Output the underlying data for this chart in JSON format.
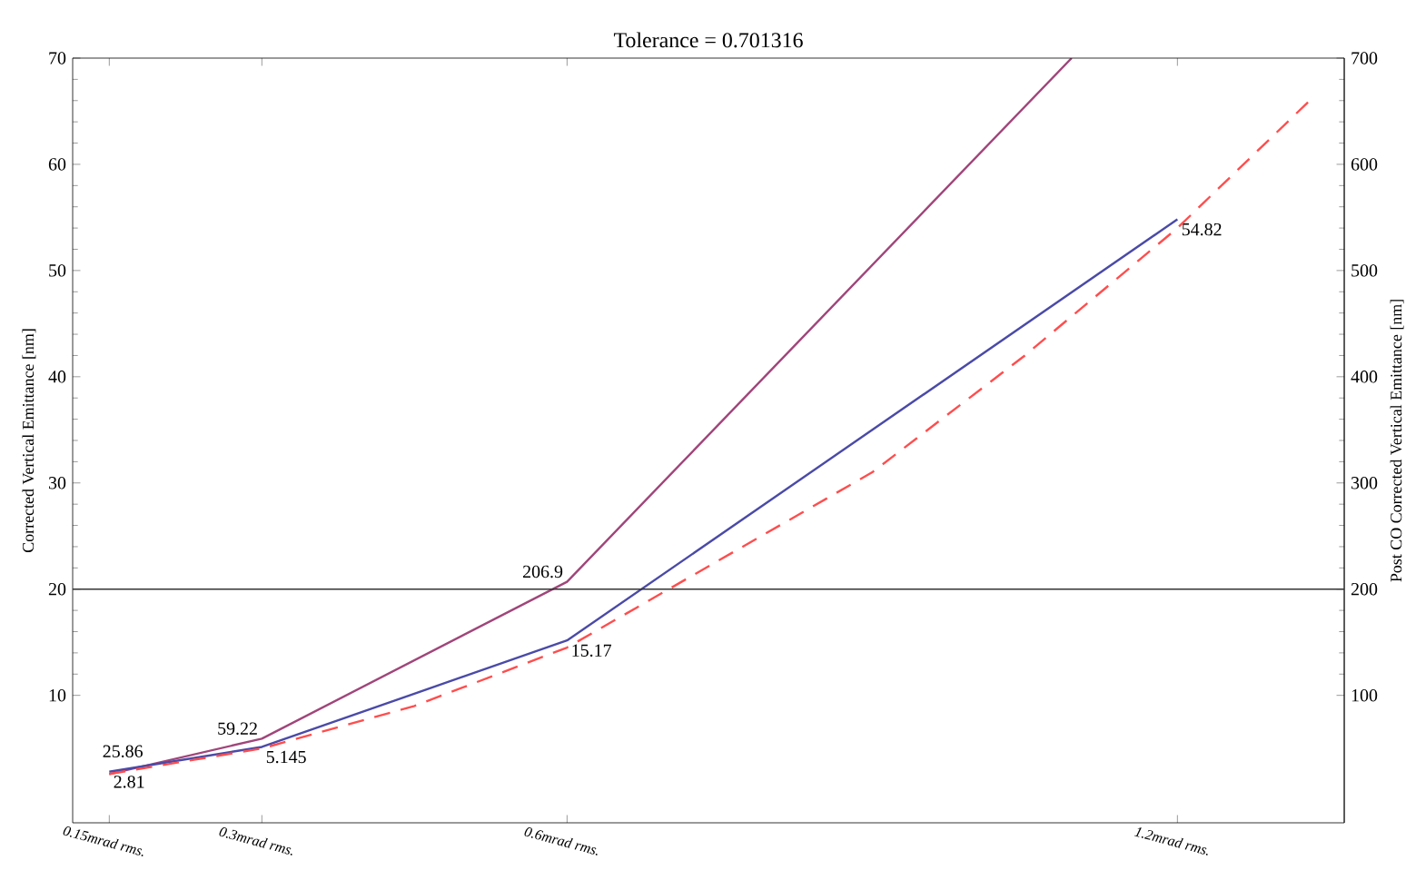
{
  "chart_data": {
    "type": "line",
    "subtitle": "Tolerance = 0.701316",
    "ylabel": "Corrected Vertical Emittance [nm]",
    "y2label": "Post CO Corrected Vertical Emittance [nm]",
    "xlim": [
      0.114,
      1.364
    ],
    "ylim": [
      -2,
      70
    ],
    "y2lim": [
      -20,
      700
    ],
    "xticks": [
      {
        "value": 0.15,
        "label": "0.15mrad rms."
      },
      {
        "value": 0.3,
        "label": "0.3mrad rms."
      },
      {
        "value": 0.6,
        "label": "0.6mrad rms."
      },
      {
        "value": 1.2,
        "label": "1.2mrad rms."
      }
    ],
    "yticks": [
      10,
      20,
      30,
      40,
      50,
      60,
      70
    ],
    "y2ticks": [
      100,
      200,
      300,
      400,
      500,
      600,
      700
    ],
    "series": [
      {
        "color": "#a0457a",
        "axis": "y2",
        "x": [
          0.15,
          0.3,
          0.6,
          1.096
        ],
        "values": [
          25.86,
          59.22,
          206.9,
          700
        ],
        "value_labels": [
          "25.86",
          "59.22",
          "206.9",
          null
        ]
      },
      {
        "color": "#4a4aa8",
        "x": [
          0.15,
          0.3,
          0.6,
          1.2
        ],
        "values": [
          2.81,
          5.145,
          15.17,
          54.82
        ],
        "value_labels": [
          "2.81",
          "5.145",
          "15.17",
          "54.82"
        ]
      },
      {
        "color": "#ff4d4d",
        "line_style": "dashed",
        "x": [
          0.15,
          0.3,
          0.45,
          0.6,
          0.7,
          0.9,
          1.05,
          1.2,
          1.33
        ],
        "values": [
          2.6,
          5.0,
          9,
          14.5,
          20,
          31,
          42,
          54,
          66
        ]
      }
    ],
    "ref_lines": [
      {
        "axis": "y",
        "value": 20,
        "color": "#333333"
      }
    ],
    "marker": "none",
    "grid": false
  }
}
